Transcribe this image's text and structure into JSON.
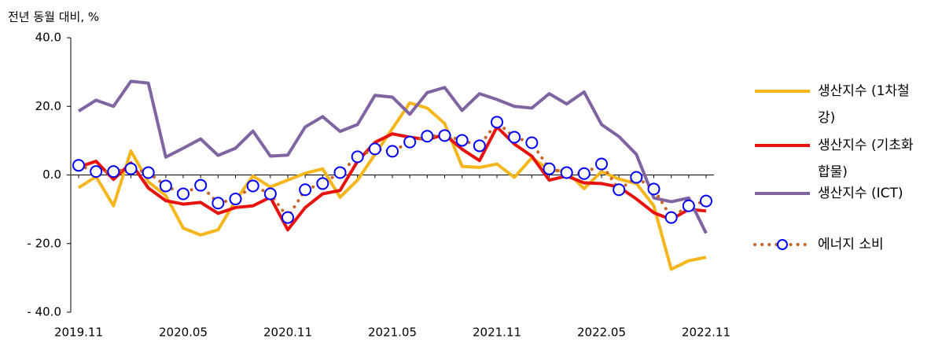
{
  "chart_data": {
    "type": "line",
    "y_axis_label": "전년 동월 대비, %",
    "categories": [
      "2019.11",
      null,
      null,
      null,
      null,
      null,
      "2020.05",
      null,
      null,
      null,
      null,
      null,
      "2020.11",
      null,
      null,
      null,
      null,
      null,
      "2021.05",
      null,
      null,
      null,
      null,
      null,
      "2021.11",
      null,
      null,
      null,
      null,
      null,
      "2022.05",
      null,
      null,
      null,
      null,
      null,
      "2022.11"
    ],
    "ylim": [
      -40,
      40
    ],
    "yticks": [
      {
        "value": 40,
        "label": "40.0"
      },
      {
        "value": 20,
        "label": "20.0"
      },
      {
        "value": 0,
        "label": "0.0"
      },
      {
        "value": -20,
        "label": "- 20.0"
      },
      {
        "value": -40,
        "label": "- 40.0"
      }
    ],
    "legend_position": "right",
    "series": [
      {
        "name": "생산지수 (1차철강)",
        "color": "#f5b61c",
        "line_style": "solid",
        "values": [
          -3.7,
          -0.5,
          -9,
          7,
          -2,
          -6,
          -15.5,
          -17.5,
          -16,
          -7.5,
          -0.3,
          -3.5,
          -1.5,
          0.5,
          1.8,
          -6.5,
          -1.5,
          6,
          13.5,
          21,
          19.5,
          15,
          2.5,
          2.2,
          3.2,
          -0.7,
          5,
          1.5,
          1,
          -4,
          1,
          -1.2,
          -2.5,
          -9,
          -27.5,
          -25,
          -24
        ]
      },
      {
        "name": "생산지수 (기초화합물)",
        "color": "#e8120c",
        "line_style": "solid",
        "values": [
          2.3,
          4,
          -1.3,
          3.5,
          -3.8,
          -7.5,
          -8.5,
          -8,
          -11.2,
          -9.5,
          -9,
          -6.5,
          -16,
          -9.5,
          -5.5,
          -4.5,
          4,
          9.5,
          12,
          11,
          10.3,
          11.8,
          7.5,
          4.2,
          14,
          9,
          5.5,
          -1.5,
          -0.3,
          -2.3,
          -2.5,
          -3.5,
          -7,
          -11,
          -13,
          -10,
          -10.5
        ]
      },
      {
        "name": "생산지수 (ICT)",
        "color": "#8064a2",
        "line_style": "solid",
        "values": [
          18.6,
          21.8,
          20,
          27.3,
          26.8,
          5.2,
          7.8,
          10.5,
          5.7,
          7.8,
          12.8,
          5.5,
          5.8,
          14,
          17,
          12.7,
          14.7,
          23.2,
          22.7,
          17.7,
          24,
          25.5,
          18.8,
          23.7,
          22,
          20,
          19.5,
          23.7,
          20.7,
          24.2,
          14.7,
          11.2,
          6,
          -6.7,
          -7.8,
          -6.7,
          -17
        ]
      },
      {
        "name": "에너지 소비",
        "color": "#c86428",
        "line_style": "dotted",
        "marker": "circle",
        "marker_color": "#0000ff",
        "values": [
          2.8,
          1,
          1,
          1.8,
          0.7,
          -3.2,
          -5.5,
          -3,
          -8.2,
          -7,
          -3.2,
          -5.5,
          -12.4,
          -4.3,
          -2.5,
          0.7,
          5.3,
          7.6,
          6.9,
          9.6,
          11.3,
          11.5,
          10.1,
          8.5,
          15.4,
          11,
          9.4,
          1.8,
          0.7,
          0.4,
          3.2,
          -4.3,
          -0.7,
          -4.1,
          -12.4,
          -9,
          -7.6
        ]
      }
    ]
  }
}
